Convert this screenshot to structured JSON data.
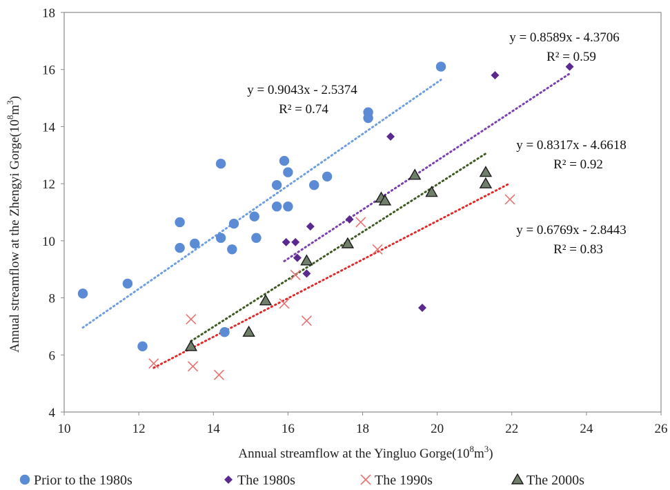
{
  "chart_data": {
    "type": "scatter",
    "title": "",
    "xlabel": "Annual streamflow at the Yingluo Gorge(10",
    "xlabel_sup": "8",
    "xlabel_tail": "m",
    "xlabel_sup2": "3",
    "xlabel_end": ")",
    "ylabel": "Annual streamflow at the Zhengyi Gorge(10",
    "ylabel_sup": "8",
    "ylabel_tail": "m",
    "ylabel_sup2": "3",
    "ylabel_end": ")",
    "xlim": [
      10,
      26
    ],
    "ylim": [
      4,
      18
    ],
    "xticks": [
      "10",
      "12",
      "14",
      "16",
      "18",
      "20",
      "22",
      "24",
      "26"
    ],
    "yticks": [
      "4",
      "6",
      "8",
      "10",
      "12",
      "14",
      "16",
      "18"
    ],
    "grid": false,
    "legend_position": "bottom",
    "series": [
      {
        "name": "Prior to the 1980s",
        "marker": "circle",
        "color": "#5b8bd4",
        "trend_color": "#6e9ee0",
        "x": [
          10.5,
          11.7,
          12.1,
          13.1,
          13.1,
          13.5,
          14.2,
          14.2,
          14.3,
          14.5,
          14.55,
          15.1,
          15.15,
          15.7,
          15.7,
          15.9,
          16.0,
          16.0,
          16.7,
          17.05,
          18.15,
          18.15,
          20.1
        ],
        "y": [
          8.15,
          8.5,
          6.3,
          10.65,
          9.75,
          9.9,
          10.1,
          12.7,
          6.8,
          9.7,
          10.6,
          10.85,
          10.1,
          11.95,
          11.2,
          12.8,
          12.4,
          11.2,
          11.95,
          12.25,
          14.5,
          14.3,
          16.1
        ],
        "trend": {
          "x": [
            10.5,
            20.1
          ],
          "equation": "y = 0.9043x - 2.5374",
          "r2": "R² = 0.74"
        }
      },
      {
        "name": "The 1980s",
        "marker": "diamond",
        "color": "#5b2a8e",
        "trend_color": "#7a3fb0",
        "x": [
          15.95,
          16.2,
          16.25,
          16.5,
          16.6,
          17.65,
          18.75,
          19.6,
          21.55,
          23.55
        ],
        "y": [
          9.95,
          9.95,
          9.4,
          8.85,
          10.5,
          10.75,
          13.65,
          7.65,
          15.8,
          16.1
        ],
        "trend": {
          "x": [
            15.9,
            23.55
          ],
          "equation": "y = 0.8589x - 4.3706",
          "r2": "R² = 0.59"
        }
      },
      {
        "name": "The 1990s",
        "marker": "cross",
        "color": "#e57373",
        "trend_color": "#e02a2a",
        "x": [
          12.4,
          13.4,
          13.45,
          14.15,
          15.9,
          16.2,
          16.5,
          17.95,
          18.4,
          21.95
        ],
        "y": [
          5.7,
          7.25,
          5.6,
          5.3,
          7.8,
          8.8,
          7.2,
          10.65,
          9.7,
          11.45
        ],
        "trend": {
          "x": [
            12.4,
            21.95
          ],
          "equation": "y = 0.6769x - 2.8443",
          "r2": "R² = 0.83"
        }
      },
      {
        "name": "The 2000s",
        "marker": "triangle",
        "color": "#6f7f6a",
        "trend_color": "#3e5a23",
        "x": [
          13.4,
          14.95,
          15.4,
          16.5,
          17.6,
          18.5,
          18.6,
          19.4,
          19.85,
          21.3,
          21.3
        ],
        "y": [
          6.3,
          6.8,
          7.9,
          9.3,
          9.9,
          11.5,
          11.4,
          12.3,
          11.7,
          12.4,
          12.0
        ],
        "trend": {
          "x": [
            13.4,
            21.3
          ],
          "equation": "y = 0.8317x - 4.6618",
          "r2": "R² = 0.92"
        }
      }
    ]
  }
}
